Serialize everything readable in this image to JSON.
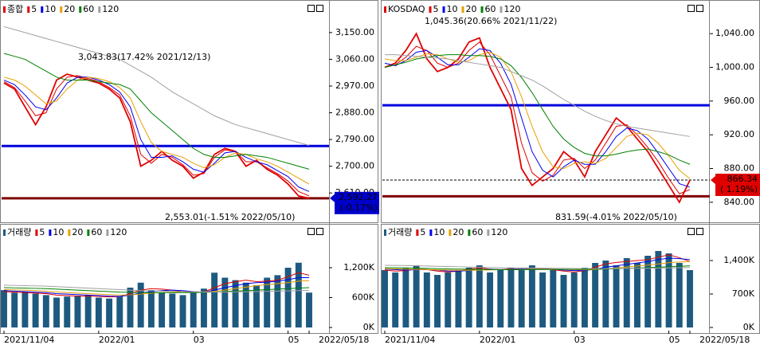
{
  "chart_data": [
    {
      "type": "line",
      "series": [
        {
          "name": "종합",
          "color": "#e00000",
          "values": [
            2980,
            2960,
            2900,
            2840,
            2900,
            2990,
            3010,
            3000,
            2990,
            2980,
            2960,
            2930,
            2850,
            2700,
            2720,
            2750,
            2720,
            2700,
            2660,
            2680,
            2740,
            2760,
            2750,
            2700,
            2720,
            2690,
            2670,
            2640,
            2600,
            2592.27
          ]
        },
        {
          "name": "5",
          "color": "#e00000",
          "values": [
            2985,
            2965,
            2920,
            2870,
            2880,
            2960,
            3000,
            3005,
            2995,
            2985,
            2965,
            2940,
            2870,
            2740,
            2710,
            2740,
            2730,
            2705,
            2670,
            2675,
            2730,
            2755,
            2750,
            2715,
            2715,
            2695,
            2675,
            2650,
            2615,
            2600
          ]
        },
        {
          "name": "10",
          "color": "#0000ee",
          "values": [
            2990,
            2975,
            2940,
            2900,
            2890,
            2930,
            2980,
            3000,
            3000,
            2990,
            2975,
            2950,
            2900,
            2790,
            2730,
            2730,
            2735,
            2715,
            2690,
            2680,
            2710,
            2745,
            2750,
            2730,
            2715,
            2705,
            2685,
            2665,
            2630,
            2615
          ]
        },
        {
          "name": "20",
          "color": "#e8a000",
          "values": [
            3000,
            2990,
            2970,
            2940,
            2910,
            2920,
            2960,
            2990,
            3000,
            2995,
            2985,
            2965,
            2930,
            2850,
            2780,
            2750,
            2740,
            2730,
            2710,
            2695,
            2705,
            2730,
            2745,
            2740,
            2725,
            2715,
            2700,
            2680,
            2660,
            2640
          ]
        },
        {
          "name": "60",
          "color": "#008000",
          "values": [
            3080,
            3070,
            3060,
            3040,
            3020,
            3000,
            2990,
            2990,
            2990,
            2985,
            2980,
            2975,
            2960,
            2920,
            2880,
            2850,
            2820,
            2790,
            2760,
            2740,
            2730,
            2730,
            2735,
            2740,
            2735,
            2730,
            2720,
            2710,
            2700,
            2690
          ]
        },
        {
          "name": "120",
          "color": "#a0a0a0",
          "values": [
            3170,
            3160,
            3150,
            3140,
            3130,
            3120,
            3110,
            3100,
            3090,
            3080,
            3070,
            3060,
            3040,
            3020,
            3000,
            2975,
            2950,
            2930,
            2910,
            2890,
            2870,
            2855,
            2840,
            2830,
            2820,
            2810,
            2800,
            2790,
            2780,
            2770
          ]
        }
      ],
      "ylim": [
        2522,
        3206
      ],
      "yticks": [
        {
          "value": 2610,
          "label": "2,610.00"
        },
        {
          "value": 2700,
          "label": "2,700.00"
        },
        {
          "value": 2790,
          "label": "2,790.00"
        },
        {
          "value": 2880,
          "label": "2,880.00"
        },
        {
          "value": 2970,
          "label": "2,970.00"
        },
        {
          "value": 3060,
          "label": "3,060.00"
        },
        {
          "value": 3150,
          "label": "3,150.00"
        }
      ],
      "hlines": [
        {
          "value": 2768,
          "color": "#0000dd",
          "width": 3
        },
        {
          "value": 2592,
          "color": "#800000",
          "width": 3
        }
      ],
      "current": {
        "value": 2592.27,
        "label": "2,592.27",
        "change": "(-0.17%)",
        "color": "#0000cc"
      },
      "annotations": [
        {
          "text": "3,043.83(17.42% 2021/12/13)",
          "color": "#cc0000"
        },
        {
          "text": "2,553.01(-1.51% 2022/05/10)",
          "color": "#000000"
        }
      ]
    },
    {
      "type": "bar",
      "categories": [
        "2021/11/04",
        null,
        null,
        null,
        null,
        null,
        null,
        null,
        null,
        "2022/01",
        null,
        null,
        null,
        null,
        null,
        null,
        null,
        null,
        "03",
        null,
        null,
        null,
        null,
        null,
        null,
        null,
        null,
        "05",
        null,
        "2022/05/18"
      ],
      "series": [
        {
          "name": "거래량",
          "color": "#1e5a80",
          "values": [
            750,
            700,
            720,
            680,
            650,
            600,
            620,
            640,
            650,
            600,
            580,
            620,
            800,
            900,
            750,
            700,
            680,
            650,
            700,
            780,
            1100,
            1000,
            950,
            900,
            850,
            1000,
            1050,
            1200,
            1300,
            700
          ]
        },
        {
          "name": "5",
          "color": "#e00000",
          "values": [
            720,
            710,
            700,
            690,
            680,
            650,
            640,
            630,
            630,
            625,
            615,
            620,
            680,
            750,
            780,
            770,
            750,
            720,
            700,
            710,
            800,
            880,
            920,
            950,
            920,
            930,
            950,
            1020,
            1100,
            1050
          ]
        },
        {
          "name": "10",
          "color": "#0000ee",
          "values": [
            740,
            730,
            720,
            710,
            700,
            680,
            670,
            660,
            650,
            640,
            630,
            625,
            650,
            690,
            720,
            740,
            750,
            740,
            720,
            710,
            750,
            800,
            840,
            880,
            900,
            910,
            930,
            960,
            1000,
            1000
          ]
        },
        {
          "name": "20",
          "color": "#e8a000",
          "values": [
            760,
            755,
            750,
            740,
            730,
            715,
            700,
            690,
            680,
            670,
            660,
            650,
            655,
            670,
            690,
            700,
            710,
            715,
            715,
            715,
            725,
            750,
            780,
            810,
            840,
            860,
            880,
            900,
            930,
            940
          ]
        },
        {
          "name": "60",
          "color": "#008000",
          "values": [
            800,
            795,
            790,
            785,
            780,
            770,
            760,
            750,
            740,
            730,
            720,
            710,
            705,
            700,
            700,
            700,
            700,
            700,
            700,
            705,
            710,
            720,
            730,
            740,
            750,
            760,
            770,
            780,
            790,
            800
          ]
        },
        {
          "name": "120",
          "color": "#a0a0a0",
          "values": [
            850,
            845,
            840,
            835,
            830,
            820,
            810,
            800,
            790,
            780,
            770,
            760,
            750,
            740,
            735,
            730,
            725,
            720,
            715,
            712,
            710,
            712,
            715,
            718,
            720,
            725,
            730,
            735,
            740,
            745
          ]
        }
      ],
      "ylim": [
        0,
        1936
      ],
      "yticks": [
        {
          "value": 0,
          "label": "0K"
        },
        {
          "value": 600,
          "label": "600K"
        },
        {
          "value": 1200,
          "label": "1,200K"
        }
      ]
    },
    {
      "type": "line",
      "series": [
        {
          "name": "KOSDAQ",
          "color": "#e00000",
          "values": [
            1000,
            1005,
            1020,
            1040,
            1010,
            995,
            1000,
            1010,
            1030,
            1035,
            1000,
            975,
            950,
            880,
            860,
            870,
            880,
            900,
            890,
            870,
            900,
            920,
            940,
            930,
            915,
            900,
            880,
            860,
            840,
            866.34
          ]
        },
        {
          "name": "5",
          "color": "#e00000",
          "values": [
            1000,
            1003,
            1012,
            1025,
            1020,
            1005,
            1000,
            1005,
            1020,
            1030,
            1015,
            990,
            965,
            910,
            875,
            865,
            872,
            890,
            892,
            880,
            890,
            910,
            930,
            932,
            920,
            905,
            888,
            868,
            850,
            855
          ]
        },
        {
          "name": "10",
          "color": "#0000ee",
          "values": [
            1005,
            1002,
            1008,
            1018,
            1020,
            1012,
            1003,
            1003,
            1012,
            1022,
            1020,
            1005,
            980,
            940,
            900,
            878,
            870,
            882,
            890,
            885,
            885,
            900,
            918,
            928,
            925,
            915,
            898,
            880,
            862,
            858
          ]
        },
        {
          "name": "20",
          "color": "#e8a000",
          "values": [
            1010,
            1008,
            1008,
            1012,
            1016,
            1015,
            1010,
            1006,
            1008,
            1015,
            1018,
            1012,
            995,
            965,
            930,
            900,
            882,
            880,
            886,
            888,
            886,
            892,
            905,
            918,
            922,
            920,
            910,
            895,
            878,
            868
          ]
        },
        {
          "name": "60",
          "color": "#008000",
          "values": [
            1000,
            1003,
            1006,
            1010,
            1012,
            1014,
            1015,
            1015,
            1014,
            1014,
            1013,
            1010,
            1002,
            988,
            970,
            950,
            930,
            915,
            905,
            898,
            895,
            895,
            897,
            900,
            902,
            903,
            900,
            896,
            890,
            885
          ]
        },
        {
          "name": "120",
          "color": "#a0a0a0",
          "values": [
            1015,
            1015,
            1014,
            1013,
            1012,
            1011,
            1010,
            1008,
            1006,
            1004,
            1002,
            1000,
            995,
            990,
            985,
            978,
            970,
            962,
            955,
            948,
            942,
            937,
            933,
            930,
            928,
            926,
            924,
            922,
            920,
            918
          ]
        }
      ],
      "ylim": [
        820,
        1061
      ],
      "yticks": [
        {
          "value": 840,
          "label": "840.00"
        },
        {
          "value": 880,
          "label": "880.00"
        },
        {
          "value": 920,
          "label": "920.00"
        },
        {
          "value": 960,
          "label": "960.00"
        },
        {
          "value": 1000,
          "label": "1,000.00"
        },
        {
          "value": 1040,
          "label": "1,040.00"
        }
      ],
      "hlines": [
        {
          "value": 955,
          "color": "#0000dd",
          "width": 3
        },
        {
          "value": 866.34,
          "color": "#000000",
          "width": 1,
          "dash": true
        },
        {
          "value": 847,
          "color": "#800000",
          "width": 3
        }
      ],
      "current": {
        "value": 866.34,
        "label": "866.34",
        "change": "(  1.19%)",
        "color": "#e00000"
      },
      "annotations": [
        {
          "text": "1,045.36(20.66% 2021/11/22)",
          "color": "#cc0000"
        },
        {
          "text": "831.59(-4.01% 2022/05/10)",
          "color": "#000080"
        }
      ]
    },
    {
      "type": "bar",
      "categories": [
        "2021/11/04",
        null,
        null,
        null,
        null,
        null,
        null,
        null,
        null,
        "2022/01",
        null,
        null,
        null,
        null,
        null,
        null,
        null,
        null,
        "03",
        null,
        null,
        null,
        null,
        null,
        null,
        null,
        null,
        "05",
        null,
        "2022/05/18"
      ],
      "series": [
        {
          "name": "거래량",
          "color": "#1e5a80",
          "values": [
            1200,
            1150,
            1250,
            1300,
            1150,
            1100,
            1150,
            1200,
            1250,
            1300,
            1150,
            1200,
            1250,
            1200,
            1300,
            1150,
            1200,
            1100,
            1150,
            1250,
            1350,
            1400,
            1300,
            1450,
            1350,
            1500,
            1600,
            1550,
            1350,
            1200
          ]
        },
        {
          "name": "5",
          "color": "#e00000",
          "values": [
            1200,
            1180,
            1190,
            1220,
            1210,
            1180,
            1160,
            1180,
            1220,
            1250,
            1220,
            1210,
            1230,
            1220,
            1240,
            1220,
            1210,
            1180,
            1160,
            1190,
            1260,
            1330,
            1360,
            1380,
            1400,
            1420,
            1470,
            1520,
            1460,
            1380
          ]
        },
        {
          "name": "10",
          "color": "#0000ee",
          "values": [
            1220,
            1210,
            1200,
            1210,
            1210,
            1200,
            1180,
            1180,
            1190,
            1210,
            1220,
            1210,
            1220,
            1230,
            1230,
            1230,
            1220,
            1200,
            1190,
            1190,
            1220,
            1260,
            1290,
            1320,
            1350,
            1380,
            1420,
            1450,
            1440,
            1420
          ]
        },
        {
          "name": "20",
          "color": "#e8a000",
          "values": [
            1230,
            1225,
            1220,
            1215,
            1210,
            1205,
            1200,
            1195,
            1195,
            1200,
            1205,
            1210,
            1210,
            1215,
            1220,
            1220,
            1220,
            1215,
            1210,
            1205,
            1210,
            1225,
            1245,
            1265,
            1285,
            1305,
            1330,
            1355,
            1370,
            1380
          ]
        },
        {
          "name": "60",
          "color": "#008000",
          "values": [
            1250,
            1248,
            1245,
            1240,
            1235,
            1230,
            1225,
            1220,
            1218,
            1215,
            1212,
            1210,
            1210,
            1210,
            1210,
            1212,
            1214,
            1215,
            1215,
            1215,
            1218,
            1222,
            1228,
            1235,
            1242,
            1250,
            1260,
            1270,
            1280,
            1290
          ]
        },
        {
          "name": "120",
          "color": "#a0a0a0",
          "values": [
            1300,
            1298,
            1295,
            1290,
            1285,
            1280,
            1275,
            1270,
            1265,
            1260,
            1255,
            1250,
            1248,
            1246,
            1244,
            1242,
            1240,
            1238,
            1236,
            1234,
            1232,
            1232,
            1233,
            1235,
            1237,
            1240,
            1243,
            1246,
            1250,
            1253
          ]
        }
      ],
      "ylim": [
        0,
        2017
      ],
      "yticks": [
        {
          "value": 0,
          "label": "0K"
        },
        {
          "value": 700,
          "label": "700K"
        },
        {
          "value": 1400,
          "label": "1,400K"
        }
      ]
    }
  ]
}
